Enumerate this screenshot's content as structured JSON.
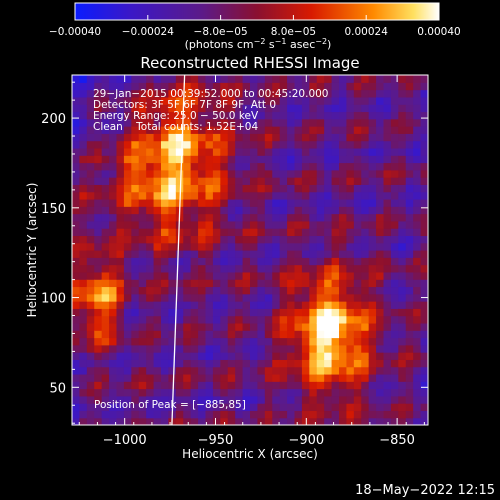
{
  "chart_data": {
    "type": "heatmap",
    "title": "Reconstructed RHESSI Image",
    "xlabel": "Heliocentric X (arcsec)",
    "ylabel": "Heliocentric Y (arcsec)",
    "xlim": [
      -1029,
      -833
    ],
    "ylim": [
      29,
      224
    ],
    "x_ticks": [
      -1000,
      -950,
      -900,
      -850
    ],
    "x_tick_labels": [
      "−1000",
      "−950",
      "−900",
      "−850"
    ],
    "y_ticks": [
      50,
      100,
      150,
      200
    ],
    "y_tick_labels": [
      "50",
      "100",
      "150",
      "200"
    ],
    "colorbar": {
      "range": [
        -0.0004,
        0.0004
      ],
      "ticks": [
        -0.0004,
        -0.00024,
        -8e-05,
        8e-05,
        0.00024,
        0.0004
      ],
      "tick_labels": [
        "−0.00040",
        "−0.00024",
        "−8.0e−05",
        "8.0e−05",
        "0.00024",
        "0.00040"
      ],
      "units_text": "(photons cm",
      "units_exp1": "−2",
      "units_mid": " s",
      "units_exp2": "−1",
      "units_mid2": " asec",
      "units_exp3": "−2",
      "units_end": ")"
    },
    "annotations": [
      "29−Jan−2015 00:39:52.000 to 00:45:20.000",
      "Detectors: 3F 5F 6F 7F 8F 9F, Att 0",
      "Energy Range: 25.0 − 50.0 keV",
      "Clean    Total counts: 1.52E+04"
    ],
    "peak_label": "Position of Peak = [−885,85]",
    "peak": [
      -885,
      85
    ],
    "limb_x_at_ymax": -967,
    "limb_x_at_ymin": -974,
    "sources": [
      {
        "name": "main-source",
        "x": -887,
        "y": 80,
        "amplitude": 1.0
      },
      {
        "name": "upper-left-ribbon",
        "x": -975,
        "y": 175,
        "amplitude": 0.85
      },
      {
        "name": "left-lower-blob",
        "x": -1015,
        "y": 100,
        "amplitude": 0.7
      }
    ]
  },
  "footer": {
    "timestamp": "18−May−2022 12:15"
  },
  "colors": {
    "background": "#000000",
    "text": "#ffffff",
    "colormap": [
      "#1040ff",
      "#3a18c8",
      "#5a1a8c",
      "#8a1030",
      "#e02000",
      "#ff8a00",
      "#ffffff"
    ]
  }
}
